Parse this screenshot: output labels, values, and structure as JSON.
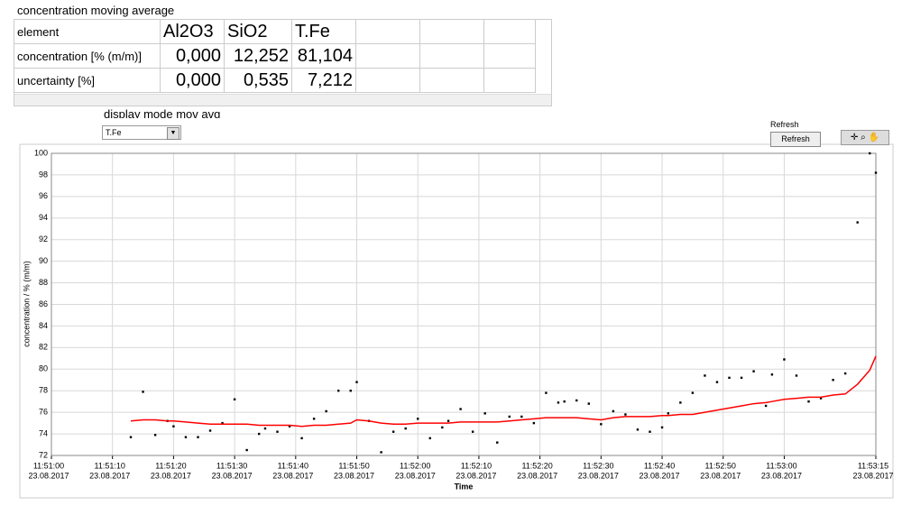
{
  "header": {
    "title": "concentration moving average"
  },
  "table": {
    "columns": [
      "element",
      "Al2O3",
      "SiO2",
      "T.Fe"
    ],
    "rows": [
      [
        "concentration [% (m/m)]",
        "0,000",
        "12,252",
        "81,104"
      ],
      [
        "uncertainty [%]",
        "0,000",
        "0,535",
        "7,212"
      ]
    ]
  },
  "controls": {
    "display_mode_label": "display mode mov avg",
    "display_mode_value": "T.Fe",
    "refresh_label": "Refresh",
    "refresh_button": "Refresh"
  },
  "chart_data": {
    "type": "line",
    "x_label": "Time",
    "y_label": "concentration / % (m/m)",
    "x": [
      "11:51:13",
      "11:51:15",
      "11:51:17",
      "11:51:19",
      "11:51:20",
      "11:51:22",
      "11:51:24",
      "11:51:26",
      "11:51:28",
      "11:51:30",
      "11:51:32",
      "11:51:34",
      "11:51:35",
      "11:51:37",
      "11:51:39",
      "11:51:41",
      "11:51:43",
      "11:51:45",
      "11:51:47",
      "11:51:49",
      "11:51:50",
      "11:51:52",
      "11:51:54",
      "11:51:56",
      "11:51:58",
      "11:52:00",
      "11:52:02",
      "11:52:04",
      "11:52:05",
      "11:52:07",
      "11:52:09",
      "11:52:11",
      "11:52:13",
      "11:52:15",
      "11:52:17",
      "11:52:19",
      "11:52:21",
      "11:52:23",
      "11:52:24",
      "11:52:26",
      "11:52:28",
      "11:52:30",
      "11:52:32",
      "11:52:34",
      "11:52:36",
      "11:52:38",
      "11:52:40",
      "11:52:41",
      "11:52:43",
      "11:52:45",
      "11:52:47",
      "11:52:49",
      "11:52:51",
      "11:52:53",
      "11:52:55",
      "11:52:57",
      "11:52:58",
      "11:53:00",
      "11:53:02",
      "11:53:04",
      "11:53:06",
      "11:53:08",
      "11:53:10",
      "11:53:12",
      "11:53:14",
      "11:53:15"
    ],
    "series": [
      {
        "type": "scatter",
        "color": "#000000",
        "values": [
          73.7,
          77.9,
          73.9,
          75.2,
          74.7,
          73.7,
          73.7,
          74.3,
          75.0,
          77.2,
          72.5,
          74.0,
          74.5,
          74.2,
          74.7,
          73.6,
          75.4,
          76.1,
          78.0,
          78.0,
          78.8,
          75.2,
          72.3,
          74.2,
          74.5,
          75.4,
          73.6,
          74.6,
          75.2,
          76.3,
          74.2,
          75.9,
          73.2,
          75.6,
          75.6,
          75.0,
          77.8,
          76.9,
          77.0,
          77.1,
          76.8,
          74.9,
          76.1,
          75.8,
          74.4,
          74.2,
          74.6,
          75.9,
          76.9,
          77.8,
          79.4,
          78.8,
          79.2,
          79.2,
          79.8,
          76.6,
          79.5,
          80.9,
          79.4,
          77.0,
          77.3,
          79.0,
          79.6,
          93.6,
          100,
          98.2
        ]
      },
      {
        "type": "line",
        "color": "#ff0000",
        "values": [
          75.2,
          75.3,
          75.3,
          75.2,
          75.2,
          75.1,
          75.0,
          74.9,
          74.9,
          74.9,
          74.9,
          74.8,
          74.8,
          74.8,
          74.8,
          74.7,
          74.8,
          74.8,
          74.9,
          75.0,
          75.3,
          75.2,
          75.0,
          74.9,
          74.9,
          75.0,
          75.0,
          75.0,
          75.0,
          75.1,
          75.1,
          75.1,
          75.1,
          75.2,
          75.3,
          75.4,
          75.5,
          75.5,
          75.5,
          75.5,
          75.4,
          75.3,
          75.5,
          75.6,
          75.6,
          75.6,
          75.7,
          75.7,
          75.8,
          75.8,
          76.0,
          76.2,
          76.4,
          76.6,
          76.8,
          76.9,
          77.0,
          77.2,
          77.3,
          77.4,
          77.4,
          77.6,
          77.7,
          78.6,
          79.9,
          81.2
        ]
      }
    ],
    "xlim": [
      "11:51:00",
      "11:53:15"
    ],
    "xticks": [
      {
        "value": "11:51:00",
        "label": [
          "11:51:00",
          "23.08.2017"
        ]
      },
      {
        "value": "11:51:10",
        "label": [
          "11:51:10",
          "23.08.2017"
        ]
      },
      {
        "value": "11:51:20",
        "label": [
          "11:51:20",
          "23.08.2017"
        ]
      },
      {
        "value": "11:51:30",
        "label": [
          "11:51:30",
          "23.08.2017"
        ]
      },
      {
        "value": "11:51:40",
        "label": [
          "11:51:40",
          "23.08.2017"
        ]
      },
      {
        "value": "11:51:50",
        "label": [
          "11:51:50",
          "23.08.2017"
        ]
      },
      {
        "value": "11:52:00",
        "label": [
          "11:52:00",
          "23.08.2017"
        ]
      },
      {
        "value": "11:52:10",
        "label": [
          "11:52:10",
          "23.08.2017"
        ]
      },
      {
        "value": "11:52:20",
        "label": [
          "11:52:20",
          "23.08.2017"
        ]
      },
      {
        "value": "11:52:30",
        "label": [
          "11:52:30",
          "23.08.2017"
        ]
      },
      {
        "value": "11:52:40",
        "label": [
          "11:52:40",
          "23.08.2017"
        ]
      },
      {
        "value": "11:52:50",
        "label": [
          "11:52:50",
          "23.08.2017"
        ]
      },
      {
        "value": "11:53:00",
        "label": [
          "11:53:00",
          "23.08.2017"
        ]
      },
      {
        "value": "11:53:15",
        "label": [
          "11:53:15",
          "23.08.2017"
        ]
      }
    ],
    "ylim": [
      72,
      100
    ],
    "yticks": [
      72,
      74,
      76,
      78,
      80,
      82,
      84,
      86,
      88,
      90,
      92,
      94,
      96,
      98,
      100
    ],
    "grid": true
  }
}
